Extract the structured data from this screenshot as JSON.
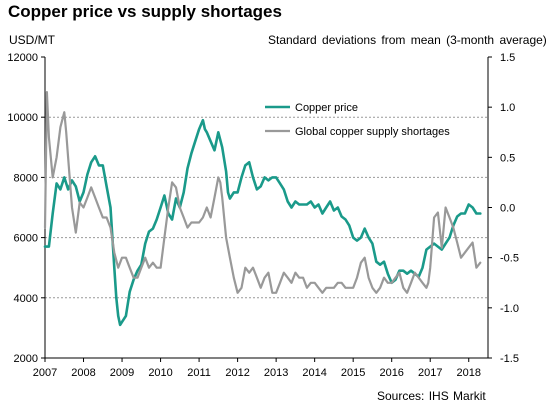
{
  "title": "Copper price vs supply shortages",
  "source": "Sources: IHS Markit",
  "colors": {
    "copper_price": "#1a9a8a",
    "supply_shortages": "#999999",
    "gridline": "#999999",
    "axis": "#000000"
  },
  "chart_data": {
    "type": "line",
    "title": "Copper price vs supply shortages",
    "left_axis_label": "USD/MT",
    "right_axis_label": "Standard deviations from mean (3-month average)",
    "x_ticks": [
      "2007",
      "2008",
      "2009",
      "2010",
      "2011",
      "2012",
      "2013",
      "2014",
      "2015",
      "2016",
      "2017",
      "2018"
    ],
    "xlim": [
      2007,
      2018.5
    ],
    "ylim_left": [
      2000,
      12000
    ],
    "y_ticks_left": [
      "2000",
      "4000",
      "6000",
      "8000",
      "10000",
      "12000"
    ],
    "ylim_right": [
      -1.5,
      1.5
    ],
    "y_ticks_right": [
      "-1.5",
      "-1.0",
      "-0.5",
      "0.0",
      "0.5",
      "1.0",
      "1.5"
    ],
    "grid": "horizontal dotted",
    "legend_position": "top-center",
    "series": [
      {
        "name": "Copper price",
        "axis": "left",
        "color": "#1a9a8a",
        "x": [
          2007.0,
          2007.1,
          2007.2,
          2007.3,
          2007.4,
          2007.5,
          2007.6,
          2007.7,
          2007.8,
          2007.9,
          2008.0,
          2008.1,
          2008.2,
          2008.3,
          2008.4,
          2008.5,
          2008.6,
          2008.7,
          2008.75,
          2008.8,
          2008.85,
          2008.9,
          2008.95,
          2009.0,
          2009.1,
          2009.2,
          2009.3,
          2009.4,
          2009.5,
          2009.6,
          2009.7,
          2009.8,
          2009.9,
          2010.0,
          2010.1,
          2010.2,
          2010.3,
          2010.4,
          2010.5,
          2010.6,
          2010.7,
          2010.8,
          2010.9,
          2011.0,
          2011.1,
          2011.15,
          2011.2,
          2011.3,
          2011.4,
          2011.5,
          2011.6,
          2011.7,
          2011.75,
          2011.8,
          2011.9,
          2012.0,
          2012.1,
          2012.2,
          2012.3,
          2012.4,
          2012.5,
          2012.6,
          2012.7,
          2012.8,
          2012.9,
          2013.0,
          2013.1,
          2013.2,
          2013.3,
          2013.4,
          2013.5,
          2013.6,
          2013.7,
          2013.8,
          2013.9,
          2014.0,
          2014.1,
          2014.2,
          2014.3,
          2014.4,
          2014.5,
          2014.6,
          2014.7,
          2014.8,
          2014.9,
          2015.0,
          2015.1,
          2015.2,
          2015.3,
          2015.4,
          2015.5,
          2015.6,
          2015.7,
          2015.8,
          2015.9,
          2016.0,
          2016.1,
          2016.2,
          2016.3,
          2016.4,
          2016.5,
          2016.6,
          2016.7,
          2016.8,
          2016.9,
          2017.0,
          2017.1,
          2017.2,
          2017.3,
          2017.4,
          2017.5,
          2017.6,
          2017.7,
          2017.8,
          2017.9,
          2018.0,
          2018.1,
          2018.2,
          2018.3
        ],
        "values": [
          5700,
          5700,
          6800,
          7800,
          7600,
          8000,
          7600,
          7900,
          7700,
          7200,
          7500,
          8100,
          8500,
          8700,
          8400,
          8400,
          7700,
          7000,
          6000,
          5000,
          4000,
          3400,
          3100,
          3200,
          3400,
          4200,
          4600,
          4900,
          5100,
          5800,
          6200,
          6300,
          6600,
          7000,
          7400,
          6800,
          6600,
          7300,
          7000,
          7500,
          8300,
          8800,
          9200,
          9600,
          9900,
          9600,
          9500,
          9200,
          8900,
          9500,
          9000,
          8200,
          7500,
          7300,
          7500,
          7500,
          8000,
          8400,
          8500,
          8000,
          7600,
          7700,
          8000,
          7900,
          8000,
          8000,
          7800,
          7600,
          7200,
          7000,
          7200,
          7100,
          7100,
          7100,
          7200,
          7000,
          7100,
          6800,
          7000,
          7200,
          6900,
          7000,
          6700,
          6600,
          6400,
          6000,
          5900,
          6000,
          6300,
          6000,
          5800,
          5200,
          5100,
          5200,
          4800,
          4500,
          4600,
          4900,
          4900,
          4800,
          4900,
          4800,
          4700,
          5000,
          5600,
          5700,
          5800,
          5700,
          5600,
          5800,
          6000,
          6400,
          6700,
          6800,
          6800,
          7100,
          7000,
          6800,
          6800
        ]
      },
      {
        "name": "Global copper supply shortages",
        "axis": "right",
        "color": "#999999",
        "x": [
          2007.0,
          2007.05,
          2007.1,
          2007.2,
          2007.3,
          2007.4,
          2007.5,
          2007.55,
          2007.6,
          2007.7,
          2007.8,
          2007.9,
          2008.0,
          2008.1,
          2008.2,
          2008.3,
          2008.4,
          2008.5,
          2008.6,
          2008.7,
          2008.8,
          2008.9,
          2009.0,
          2009.1,
          2009.2,
          2009.3,
          2009.4,
          2009.5,
          2009.6,
          2009.7,
          2009.8,
          2009.9,
          2010.0,
          2010.1,
          2010.2,
          2010.3,
          2010.4,
          2010.5,
          2010.6,
          2010.7,
          2010.8,
          2010.9,
          2011.0,
          2011.1,
          2011.2,
          2011.3,
          2011.4,
          2011.5,
          2011.55,
          2011.6,
          2011.7,
          2011.8,
          2011.9,
          2012.0,
          2012.1,
          2012.2,
          2012.3,
          2012.4,
          2012.5,
          2012.6,
          2012.7,
          2012.8,
          2012.9,
          2013.0,
          2013.1,
          2013.2,
          2013.3,
          2013.4,
          2013.5,
          2013.6,
          2013.7,
          2013.8,
          2013.9,
          2014.0,
          2014.1,
          2014.2,
          2014.3,
          2014.4,
          2014.5,
          2014.6,
          2014.7,
          2014.8,
          2014.9,
          2015.0,
          2015.1,
          2015.2,
          2015.3,
          2015.4,
          2015.5,
          2015.6,
          2015.7,
          2015.8,
          2015.9,
          2016.0,
          2016.1,
          2016.2,
          2016.3,
          2016.4,
          2016.5,
          2016.6,
          2016.7,
          2016.8,
          2016.9,
          2016.95,
          2017.0,
          2017.1,
          2017.2,
          2017.3,
          2017.4,
          2017.5,
          2017.6,
          2017.7,
          2017.8,
          2017.9,
          2018.0,
          2018.1,
          2018.2,
          2018.3
        ],
        "values": [
          -0.2,
          1.15,
          0.7,
          0.3,
          0.5,
          0.8,
          0.95,
          0.75,
          0.5,
          0.0,
          -0.25,
          0.05,
          0.0,
          0.1,
          0.2,
          0.1,
          0.0,
          -0.1,
          -0.1,
          -0.2,
          -0.45,
          -0.6,
          -0.5,
          -0.5,
          -0.6,
          -0.7,
          -0.7,
          -0.6,
          -0.5,
          -0.6,
          -0.55,
          -0.6,
          -0.6,
          -0.3,
          0.0,
          0.25,
          0.2,
          0.0,
          -0.1,
          -0.2,
          -0.15,
          -0.15,
          -0.15,
          -0.1,
          0.0,
          -0.1,
          0.1,
          0.3,
          0.25,
          0.1,
          -0.3,
          -0.5,
          -0.7,
          -0.85,
          -0.8,
          -0.6,
          -0.65,
          -0.6,
          -0.7,
          -0.8,
          -0.7,
          -0.65,
          -0.85,
          -0.85,
          -0.75,
          -0.65,
          -0.7,
          -0.75,
          -0.65,
          -0.7,
          -0.7,
          -0.8,
          -0.75,
          -0.75,
          -0.8,
          -0.85,
          -0.8,
          -0.8,
          -0.8,
          -0.75,
          -0.75,
          -0.8,
          -0.8,
          -0.8,
          -0.7,
          -0.55,
          -0.5,
          -0.7,
          -0.8,
          -0.85,
          -0.8,
          -0.7,
          -0.75,
          -0.75,
          -0.7,
          -0.65,
          -0.8,
          -0.85,
          -0.75,
          -0.65,
          -0.7,
          -0.75,
          -0.8,
          -0.75,
          -0.6,
          -0.1,
          -0.05,
          -0.4,
          0.0,
          -0.1,
          -0.2,
          -0.35,
          -0.5,
          -0.45,
          -0.4,
          -0.35,
          -0.6,
          -0.55
        ]
      }
    ]
  }
}
